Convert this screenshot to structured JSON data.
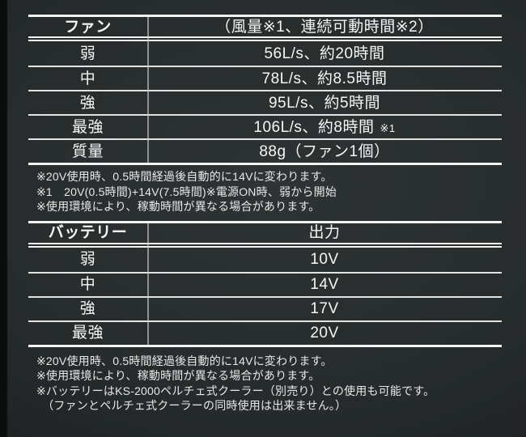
{
  "theme": {
    "background": "#262b2c",
    "line_color": "#f2f4f4",
    "divider_color": "#c9cfcf",
    "text_color": "#f5f7f7",
    "note_text_color": "#e6e9e9"
  },
  "fan_table": {
    "header": {
      "label": "ファン",
      "value": "（風量※1、連続可動時間※2）"
    },
    "rows": [
      {
        "label": "弱",
        "value": "56L/s、約20時間"
      },
      {
        "label": "中",
        "value": "78L/s、約8.5時間"
      },
      {
        "label": "強",
        "value": "95L/s、約5時間"
      },
      {
        "label": "最強",
        "value": "106L/s、約8時間",
        "suffix": "※1"
      },
      {
        "label": "質量",
        "value": "88g（ファン1個）"
      }
    ],
    "notes": [
      "※20V使用時、0.5時間経過後自動的に14Vに変わります。",
      "※1　20V(0.5時間)+14V(7.5時間)※電源ON時、弱から開始",
      "※使用環境により、稼動時間が異なる場合があります。"
    ]
  },
  "battery_table": {
    "header": {
      "label": "バッテリー",
      "value": "出力"
    },
    "rows": [
      {
        "label": "弱",
        "value": "10V"
      },
      {
        "label": "中",
        "value": "14V"
      },
      {
        "label": "強",
        "value": "17V"
      },
      {
        "label": "最強",
        "value": "20V"
      }
    ],
    "notes": [
      "※20V使用時、0.5時間経過後自動的に14Vに変わります。",
      "※使用環境により、稼動時間が異なる場合があります。",
      "※バッテリーはKS-2000ペルチェ式クーラー（別売り）との使用も可能です。",
      "　（ファンとペルチェ式クーラーの同時使用は出来ません。）"
    ]
  }
}
